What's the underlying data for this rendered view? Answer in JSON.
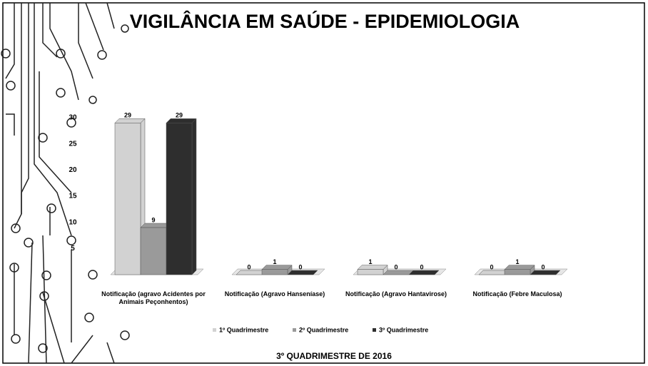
{
  "chart_data": {
    "type": "bar",
    "title": "VIGILÂNCIA EM SAÚDE - EPIDEMIOLOGIA",
    "subtitle": "3º QUADRIMESTRE DE 2016",
    "categories": [
      "Notificação (agravo Acidentes por Animais Peçonhentos)",
      "Notificação (Agravo Hanseníase)",
      "Notificação (Agravo Hantavirose)",
      "Notificação (Febre Maculosa)"
    ],
    "series": [
      {
        "name": "1º Quadrimestre",
        "color": "#d2d2d2",
        "values": [
          29,
          0,
          1,
          0
        ]
      },
      {
        "name": "2º Quadrimestre",
        "color": "#9a9a9a",
        "values": [
          9,
          1,
          0,
          1
        ]
      },
      {
        "name": "3º Quadrimestre",
        "color": "#2e2e2e",
        "values": [
          29,
          0,
          0,
          0
        ]
      }
    ],
    "ylim": [
      0,
      30
    ],
    "yticks": [
      5,
      10,
      15,
      20,
      25,
      30
    ],
    "grid": false,
    "legend": "bottom"
  }
}
